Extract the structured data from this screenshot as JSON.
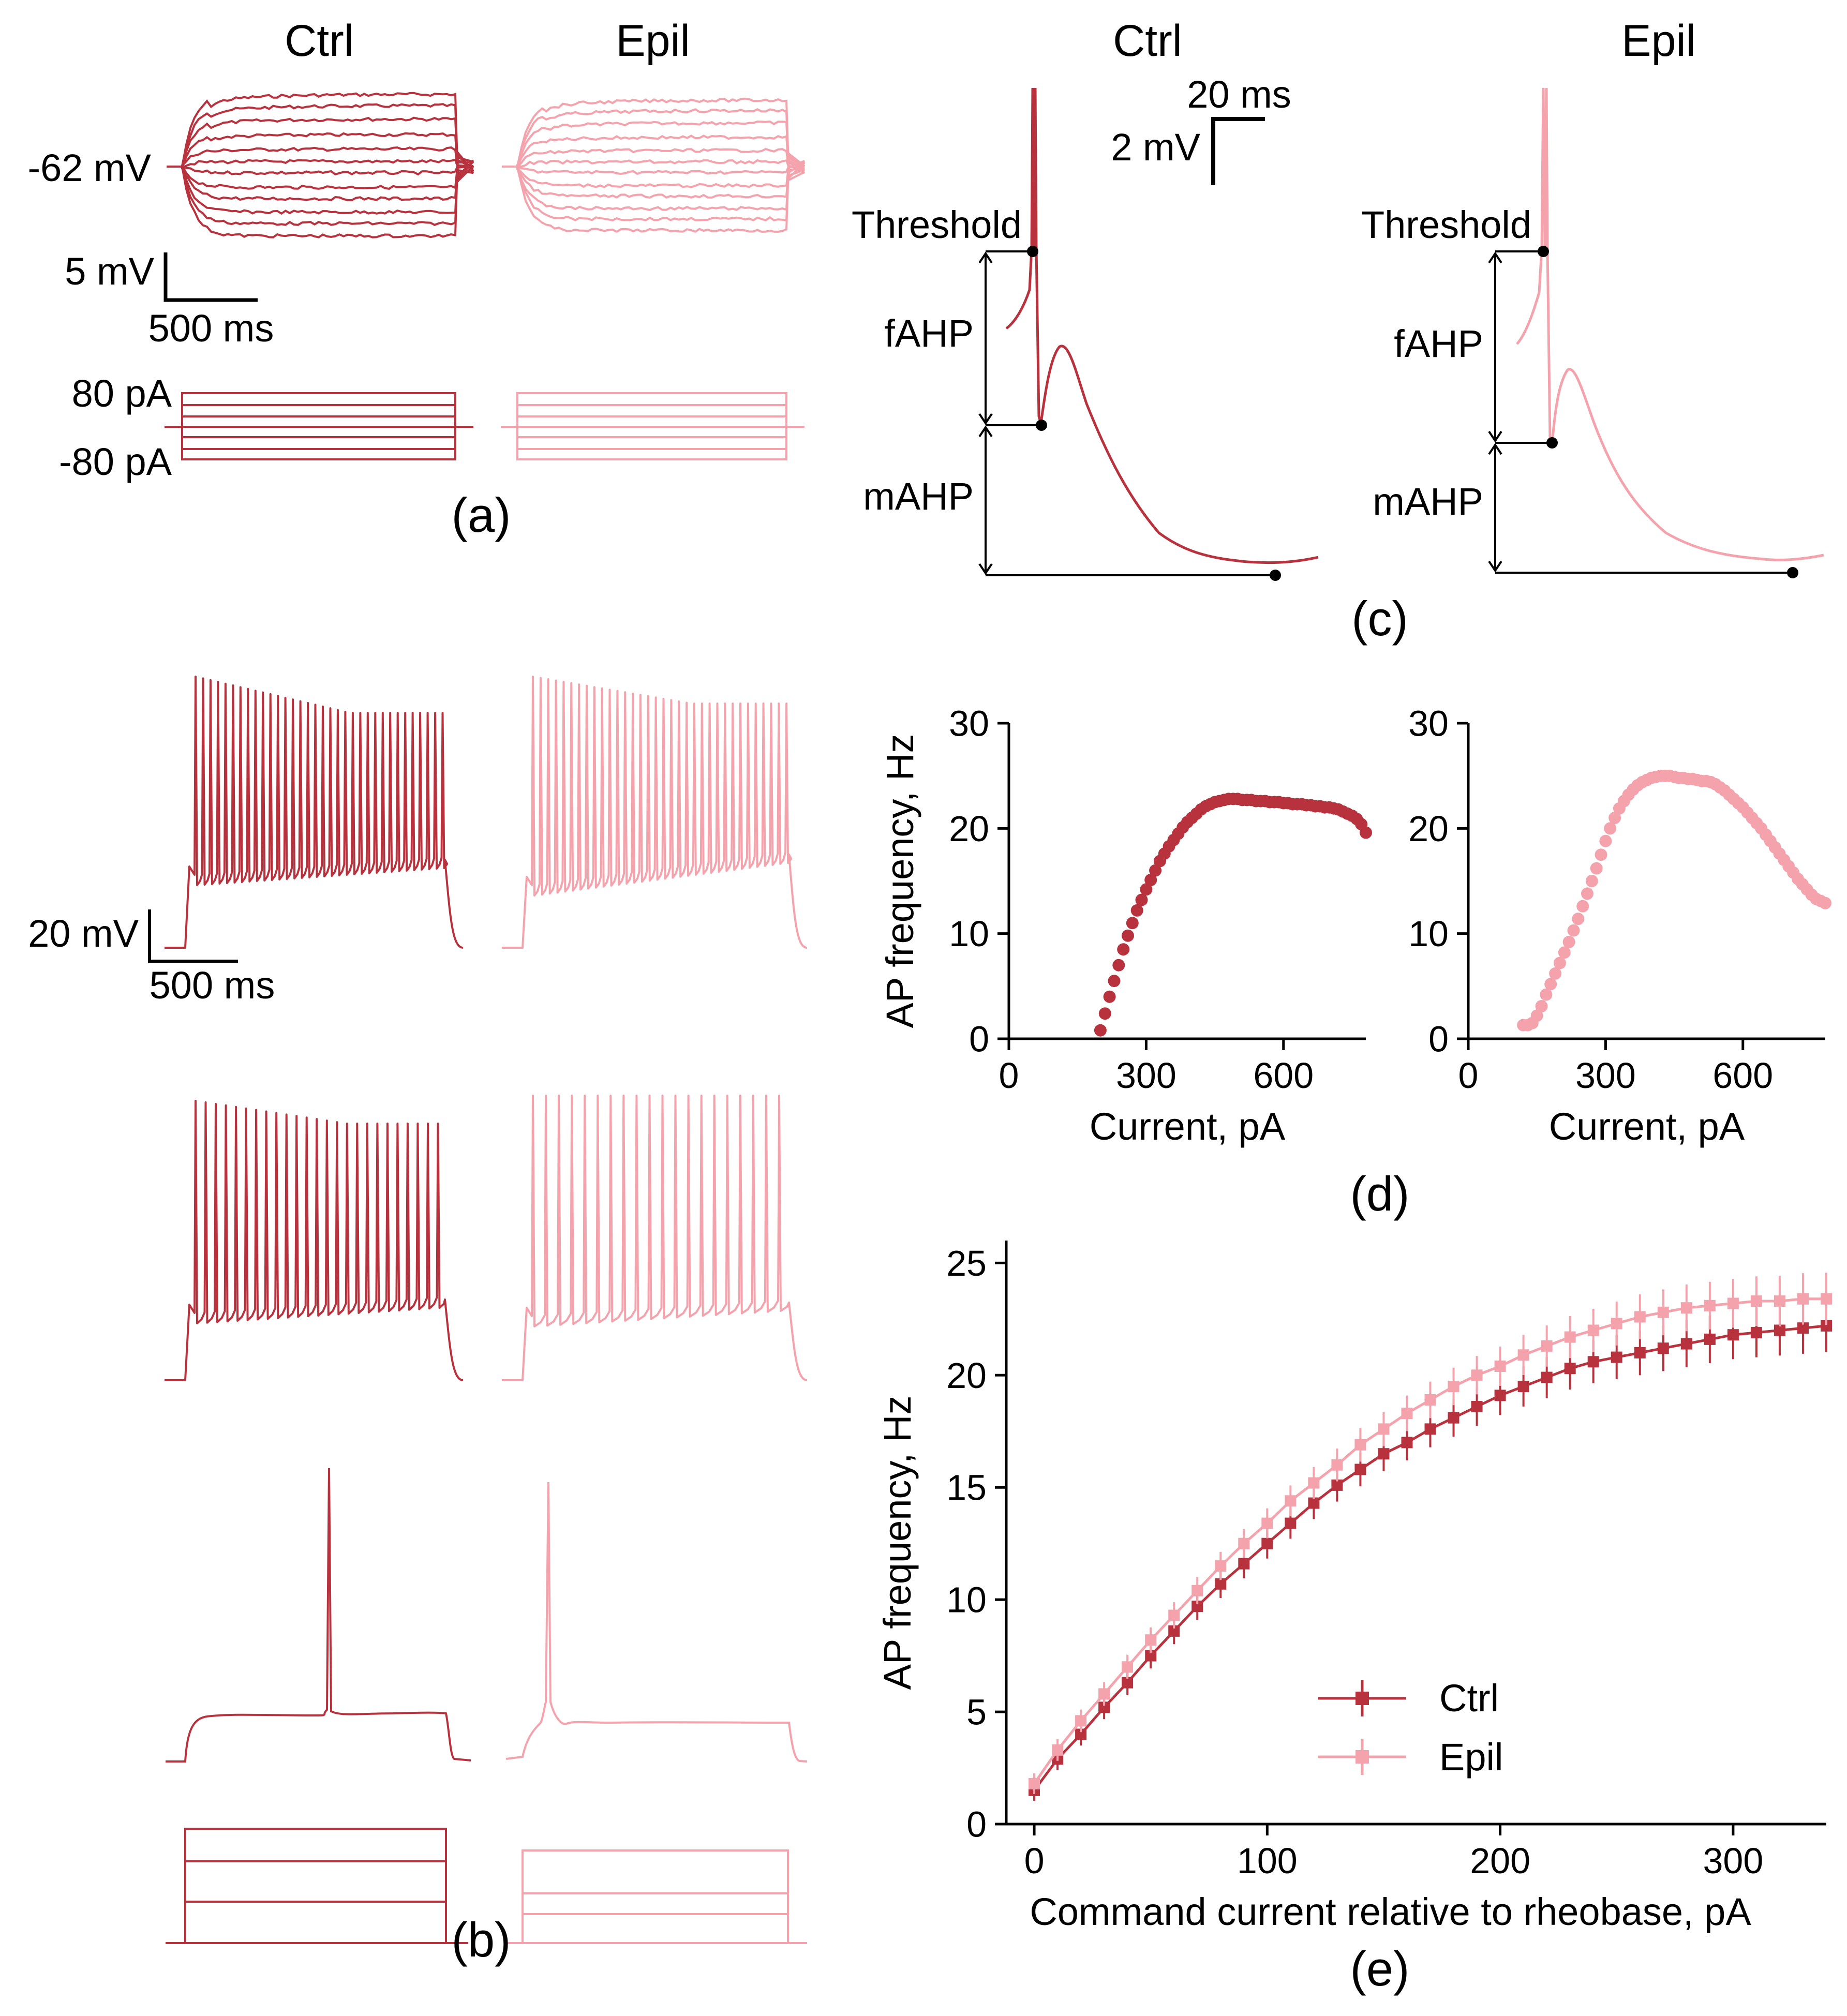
{
  "colors": {
    "ctrl": "#b8323e",
    "epil": "#f4a3ac",
    "ink": "#000000"
  },
  "labels": {
    "ctrl": "Ctrl",
    "epil": "Epil"
  },
  "panel_a": {
    "letter": "(a)",
    "rest_label": "-62 mV",
    "scale_v": "5 mV",
    "scale_t": "500 ms",
    "current_high": "80 pA",
    "current_low": "-80 pA"
  },
  "panel_b": {
    "letter": "(b)",
    "scale_v": "20 mV",
    "scale_t": "500 ms"
  },
  "panel_c": {
    "letter": "(c)",
    "scale_t": "20 ms",
    "scale_v": "2 mV",
    "threshold": "Threshold",
    "fahp": "fAHP",
    "mahp": "mAHP"
  },
  "panel_d": {
    "letter": "(d)"
  },
  "panel_e": {
    "letter": "(e)"
  },
  "chart_data": [
    {
      "type": "scatter",
      "panel": "d-ctrl",
      "xlabel": "Current, pA",
      "ylabel": "AP frequency, Hz",
      "xlim": [
        0,
        780
      ],
      "ylim": [
        0,
        30
      ],
      "xticks": [
        0,
        300,
        600
      ],
      "yticks": [
        0,
        10,
        20,
        30
      ],
      "x": [
        200,
        210,
        220,
        230,
        240,
        250,
        260,
        270,
        280,
        290,
        300,
        310,
        320,
        330,
        340,
        350,
        360,
        370,
        380,
        390,
        400,
        410,
        420,
        430,
        440,
        450,
        460,
        470,
        480,
        490,
        500,
        510,
        520,
        530,
        540,
        550,
        560,
        570,
        580,
        590,
        600,
        610,
        620,
        630,
        640,
        650,
        660,
        670,
        680,
        690,
        700,
        710,
        720,
        730,
        740,
        750,
        760,
        770,
        780
      ],
      "values": [
        0.8,
        2.4,
        4,
        5.5,
        7,
        8.5,
        9.8,
        11,
        12.2,
        13.2,
        14.2,
        15.1,
        16,
        16.9,
        17.6,
        18.3,
        18.9,
        19.5,
        20.1,
        20.6,
        21,
        21.4,
        21.8,
        22.1,
        22.3,
        22.5,
        22.6,
        22.7,
        22.8,
        22.8,
        22.8,
        22.7,
        22.7,
        22.7,
        22.6,
        22.6,
        22.6,
        22.5,
        22.5,
        22.5,
        22.4,
        22.4,
        22.3,
        22.3,
        22.3,
        22.2,
        22.2,
        22.1,
        22.1,
        22,
        22,
        21.9,
        21.8,
        21.6,
        21.4,
        21.2,
        20.9,
        20.4,
        19.6
      ],
      "series": [
        {
          "name": "Ctrl"
        }
      ]
    },
    {
      "type": "scatter",
      "panel": "d-epil",
      "xlabel": "Current, pA",
      "ylabel": "",
      "xlim": [
        0,
        780
      ],
      "ylim": [
        0,
        30
      ],
      "xticks": [
        0,
        300,
        600
      ],
      "yticks": [
        0,
        10,
        20,
        30
      ],
      "x": [
        120,
        130,
        140,
        150,
        160,
        170,
        180,
        190,
        200,
        210,
        220,
        230,
        240,
        250,
        260,
        270,
        280,
        290,
        300,
        310,
        320,
        330,
        340,
        350,
        360,
        370,
        380,
        390,
        400,
        410,
        420,
        430,
        440,
        450,
        460,
        470,
        480,
        490,
        500,
        510,
        520,
        530,
        540,
        550,
        560,
        570,
        580,
        590,
        600,
        610,
        620,
        630,
        640,
        650,
        660,
        670,
        680,
        690,
        700,
        710,
        720,
        730,
        740,
        750,
        760,
        770,
        780
      ],
      "values": [
        1.3,
        1.3,
        1.5,
        2.2,
        3.1,
        4.2,
        5.2,
        6.2,
        7.2,
        8.2,
        9.2,
        10.3,
        11.4,
        12.6,
        13.8,
        15,
        16.2,
        17.5,
        18.8,
        20,
        21,
        21.9,
        22.6,
        23.2,
        23.7,
        24.1,
        24.4,
        24.6,
        24.8,
        24.9,
        25,
        25,
        25,
        24.9,
        24.8,
        24.8,
        24.7,
        24.7,
        24.6,
        24.5,
        24.5,
        24.4,
        24.2,
        23.9,
        23.6,
        23.2,
        22.8,
        22.4,
        22,
        21.5,
        21,
        20.5,
        20,
        19.4,
        18.8,
        18.2,
        17.6,
        17,
        16.4,
        15.8,
        15.2,
        14.7,
        14.2,
        13.7,
        13.3,
        13.1,
        12.9
      ],
      "series": [
        {
          "name": "Epil"
        }
      ]
    },
    {
      "type": "line",
      "panel": "e",
      "xlabel": "Command current relative to rheobase, pA",
      "ylabel": "AP frequency, Hz",
      "xlim": [
        -12,
        340
      ],
      "ylim": [
        0,
        26
      ],
      "xticks": [
        0,
        100,
        200,
        300
      ],
      "yticks": [
        0,
        5,
        10,
        15,
        20,
        25
      ],
      "legend": "center-right",
      "x": [
        0,
        10,
        20,
        30,
        40,
        50,
        60,
        70,
        80,
        90,
        100,
        110,
        120,
        130,
        140,
        150,
        160,
        170,
        180,
        190,
        200,
        210,
        220,
        230,
        240,
        250,
        260,
        270,
        280,
        290,
        300,
        310,
        320,
        330,
        340
      ],
      "series": [
        {
          "name": "Ctrl",
          "values": [
            1.5,
            2.9,
            4.0,
            5.2,
            6.3,
            7.5,
            8.6,
            9.7,
            10.7,
            11.6,
            12.5,
            13.4,
            14.3,
            15.1,
            15.8,
            16.5,
            17.0,
            17.6,
            18.1,
            18.6,
            19.1,
            19.5,
            19.9,
            20.3,
            20.6,
            20.8,
            21.0,
            21.2,
            21.4,
            21.6,
            21.8,
            21.9,
            22.0,
            22.1,
            22.2
          ]
        },
        {
          "name": "Epil",
          "values": [
            1.8,
            3.3,
            4.6,
            5.8,
            7.0,
            8.2,
            9.3,
            10.4,
            11.5,
            12.5,
            13.4,
            14.4,
            15.2,
            16.0,
            16.9,
            17.6,
            18.3,
            18.9,
            19.5,
            20.0,
            20.4,
            20.9,
            21.3,
            21.7,
            22.0,
            22.3,
            22.6,
            22.8,
            23.0,
            23.1,
            23.2,
            23.3,
            23.3,
            23.4,
            23.4
          ]
        }
      ]
    }
  ]
}
